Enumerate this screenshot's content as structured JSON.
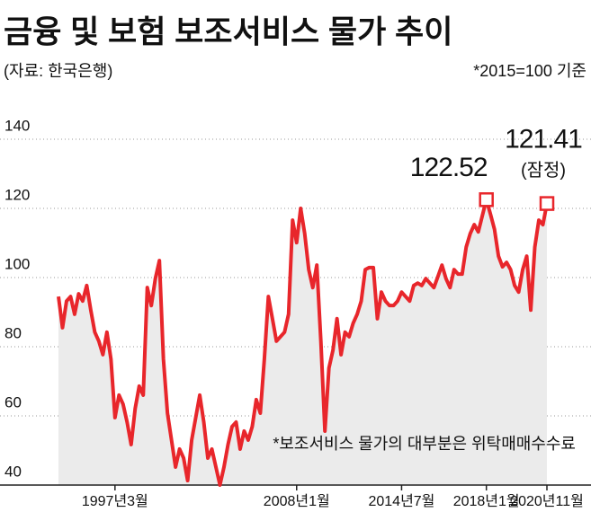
{
  "chart_data": {
    "type": "line",
    "title": "금융 및 보험 보조서비스 물가 추이",
    "source": "(자료: 한국은행)",
    "subtitle": "*2015=100 기준",
    "footnote": "*보조서비스 물가의 대부분은 위탁매매수수료",
    "annotation": "(잠정)",
    "categories": [
      null,
      null,
      null,
      null,
      null,
      null,
      null,
      null,
      null,
      null,
      null,
      null,
      null,
      null,
      "1997년3월",
      null,
      null,
      null,
      null,
      null,
      null,
      null,
      null,
      null,
      null,
      null,
      null,
      null,
      null,
      null,
      null,
      null,
      null,
      null,
      null,
      null,
      null,
      null,
      null,
      null,
      null,
      null,
      null,
      null,
      null,
      null,
      null,
      null,
      null,
      null,
      null,
      null,
      null,
      null,
      null,
      null,
      null,
      null,
      null,
      "2008년1월",
      null,
      null,
      null,
      null,
      null,
      null,
      null,
      null,
      null,
      null,
      null,
      null,
      null,
      null,
      null,
      null,
      null,
      null,
      null,
      null,
      null,
      null,
      null,
      null,
      null,
      "2014년7월",
      null,
      null,
      null,
      null,
      null,
      null,
      null,
      null,
      null,
      null,
      null,
      null,
      null,
      null,
      null,
      null,
      null,
      null,
      null,
      null,
      "2018년1월",
      null,
      null,
      null,
      null,
      null,
      null,
      null,
      null,
      null,
      null,
      null,
      null,
      null,
      null,
      "2020년11월"
    ],
    "series": [
      {
        "color": "#e8262b",
        "values": [
          94.5,
          85.5,
          93.2,
          94.5,
          89.4,
          95.3,
          93.2,
          97.7,
          90.6,
          84.2,
          81.6,
          77.7,
          84.2,
          76.4,
          59.5,
          66.0,
          63.4,
          58.2,
          51.7,
          62.1,
          68.6,
          66.0,
          97.1,
          91.9,
          99.7,
          104.9,
          76.4,
          60.8,
          53.0,
          45.2,
          50.4,
          47.8,
          41.3,
          53.0,
          59.5,
          66.0,
          58.2,
          47.8,
          50.4,
          45.2,
          40.0,
          45.2,
          51.7,
          56.9,
          58.2,
          50.4,
          55.6,
          53.0,
          56.9,
          64.7,
          60.8,
          76.4,
          94.5,
          88.1,
          81.6,
          82.9,
          84.2,
          89.4,
          116.6,
          110.1,
          120.0,
          112.7,
          102.3,
          97.1,
          103.6,
          81.6,
          55.6,
          73.8,
          79.0,
          88.1,
          77.7,
          84.2,
          82.9,
          86.8,
          89.4,
          93.2,
          102.3,
          102.9,
          102.9,
          88.1,
          95.8,
          93.2,
          91.9,
          91.9,
          93.2,
          95.8,
          94.5,
          93.2,
          97.7,
          98.4,
          97.7,
          99.7,
          98.4,
          97.1,
          100.3,
          103.6,
          99.7,
          97.1,
          102.3,
          101.0,
          101.0,
          108.8,
          112.7,
          115.3,
          113.2,
          117.9,
          122.52,
          118.4,
          114.0,
          106.2,
          103.1,
          104.4,
          102.3,
          97.7,
          95.8,
          102.3,
          106.2,
          90.6,
          108.8,
          116.6,
          115.3,
          121.41
        ]
      }
    ],
    "highlight": [
      106,
      121
    ],
    "ylim": [
      40,
      140
    ],
    "yticks": [
      40,
      60,
      80,
      100,
      120,
      140
    ],
    "grid": true
  }
}
